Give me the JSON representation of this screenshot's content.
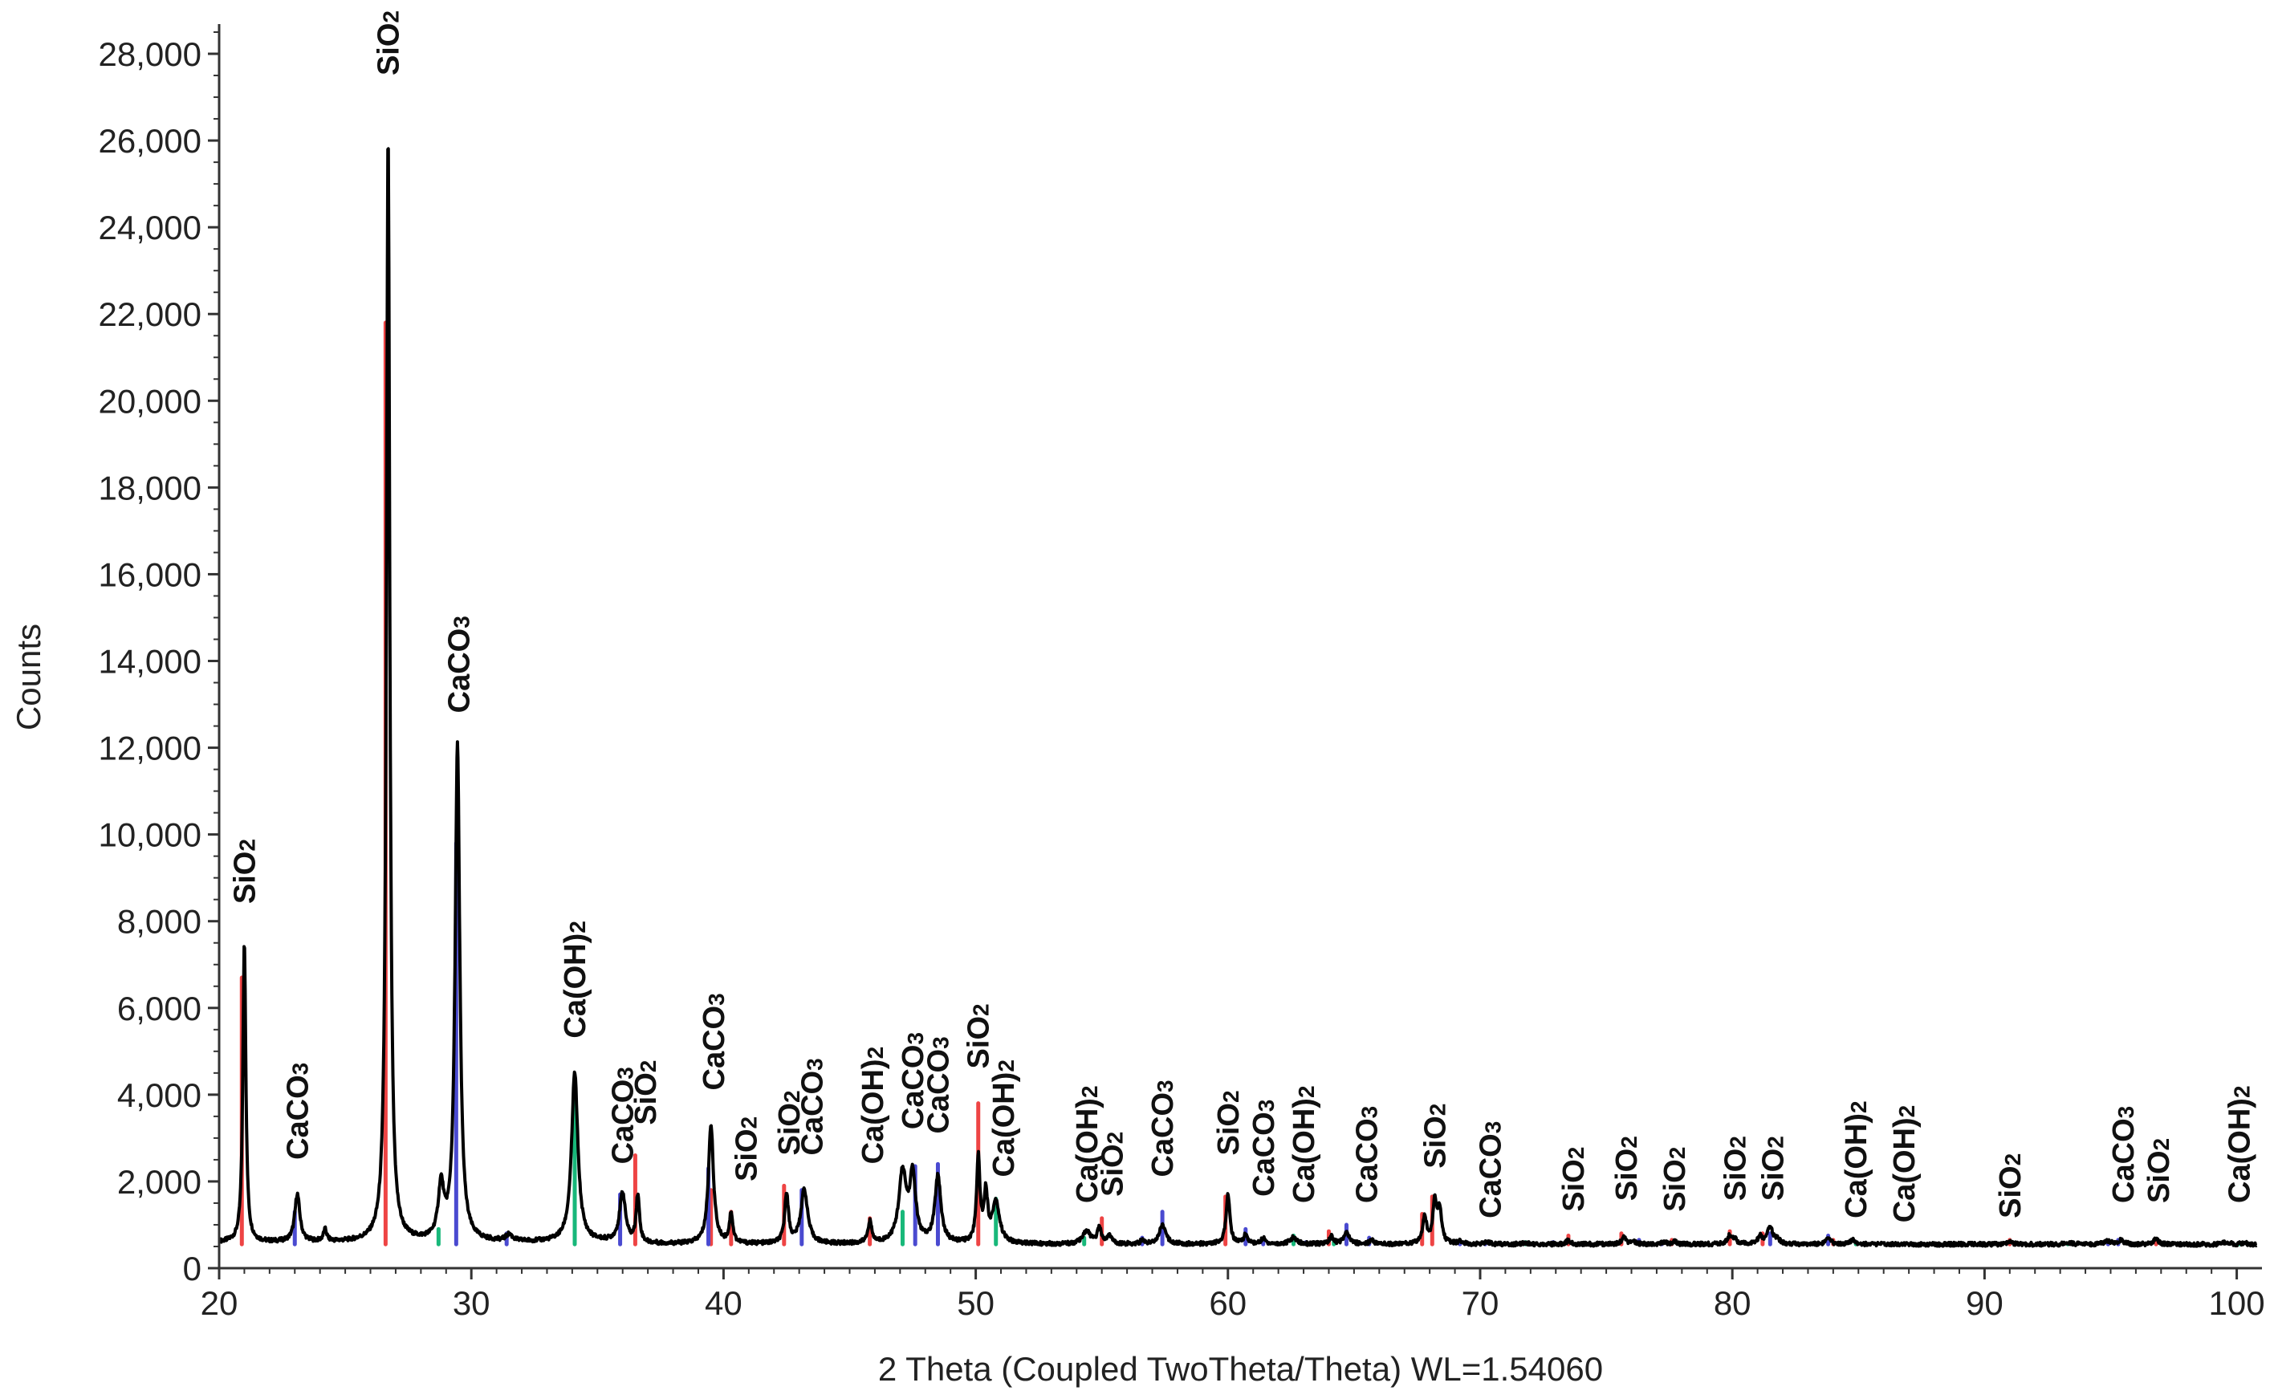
{
  "chart_data": {
    "type": "line",
    "title": "",
    "xlabel": "2 Theta (Coupled TwoTheta/Theta) WL=1.54060",
    "ylabel": "Counts",
    "xlim": [
      20,
      101
    ],
    "ylim": [
      0,
      28500
    ],
    "x_ticks": [
      20,
      30,
      40,
      50,
      60,
      70,
      80,
      90,
      100
    ],
    "y_ticks": [
      0,
      2000,
      4000,
      6000,
      8000,
      10000,
      12000,
      14000,
      16000,
      18000,
      20000,
      22000,
      24000,
      26000,
      28000
    ],
    "y_tick_labels": [
      "0",
      "2,000",
      "4,000",
      "6,000",
      "8,000",
      "10,000",
      "12,000",
      "14,000",
      "16,000",
      "18,000",
      "20,000",
      "22,000",
      "24,000",
      "26,000",
      "28,000"
    ],
    "colors": {
      "pattern": "#000000",
      "SiO2": "#ee4444",
      "CaCO3": "#4a4ad0",
      "Ca(OH)2": "#18b87a"
    },
    "baseline": 550,
    "pattern_peaks": [
      {
        "x": 21.0,
        "y": 7500,
        "w": 0.07
      },
      {
        "x": 23.1,
        "y": 1650,
        "w": 0.12
      },
      {
        "x": 24.2,
        "y": 820,
        "w": 0.08
      },
      {
        "x": 26.7,
        "y": 26100,
        "w": 0.08
      },
      {
        "x": 28.8,
        "y": 1750,
        "w": 0.13
      },
      {
        "x": 29.45,
        "y": 12000,
        "w": 0.11
      },
      {
        "x": 31.5,
        "y": 700,
        "w": 0.15
      },
      {
        "x": 34.1,
        "y": 4450,
        "w": 0.15
      },
      {
        "x": 36.0,
        "y": 1700,
        "w": 0.14
      },
      {
        "x": 36.6,
        "y": 1650,
        "w": 0.08
      },
      {
        "x": 39.5,
        "y": 3300,
        "w": 0.12
      },
      {
        "x": 40.3,
        "y": 1250,
        "w": 0.08
      },
      {
        "x": 42.5,
        "y": 1700,
        "w": 0.09
      },
      {
        "x": 43.2,
        "y": 1800,
        "w": 0.16
      },
      {
        "x": 45.8,
        "y": 1050,
        "w": 0.09
      },
      {
        "x": 47.1,
        "y": 2150,
        "w": 0.18
      },
      {
        "x": 47.5,
        "y": 2050,
        "w": 0.14
      },
      {
        "x": 48.5,
        "y": 2100,
        "w": 0.14
      },
      {
        "x": 50.1,
        "y": 2500,
        "w": 0.08
      },
      {
        "x": 50.4,
        "y": 1650,
        "w": 0.09
      },
      {
        "x": 50.8,
        "y": 1500,
        "w": 0.17
      },
      {
        "x": 54.4,
        "y": 850,
        "w": 0.17
      },
      {
        "x": 54.9,
        "y": 900,
        "w": 0.1
      },
      {
        "x": 55.3,
        "y": 750,
        "w": 0.1
      },
      {
        "x": 56.6,
        "y": 620,
        "w": 0.1
      },
      {
        "x": 57.4,
        "y": 1000,
        "w": 0.15
      },
      {
        "x": 60.0,
        "y": 1700,
        "w": 0.09
      },
      {
        "x": 60.7,
        "y": 760,
        "w": 0.1
      },
      {
        "x": 61.4,
        "y": 680,
        "w": 0.1
      },
      {
        "x": 62.6,
        "y": 700,
        "w": 0.16
      },
      {
        "x": 64.1,
        "y": 720,
        "w": 0.1
      },
      {
        "x": 64.7,
        "y": 800,
        "w": 0.14
      },
      {
        "x": 65.7,
        "y": 650,
        "w": 0.1
      },
      {
        "x": 67.8,
        "y": 1150,
        "w": 0.1
      },
      {
        "x": 68.2,
        "y": 1550,
        "w": 0.09
      },
      {
        "x": 68.4,
        "y": 1300,
        "w": 0.09
      },
      {
        "x": 69.2,
        "y": 610,
        "w": 0.1
      },
      {
        "x": 70.3,
        "y": 600,
        "w": 0.1
      },
      {
        "x": 71.8,
        "y": 580,
        "w": 0.14
      },
      {
        "x": 73.5,
        "y": 640,
        "w": 0.1
      },
      {
        "x": 75.7,
        "y": 720,
        "w": 0.1
      },
      {
        "x": 76.1,
        "y": 600,
        "w": 0.1
      },
      {
        "x": 77.3,
        "y": 600,
        "w": 0.1
      },
      {
        "x": 77.7,
        "y": 620,
        "w": 0.1
      },
      {
        "x": 79.9,
        "y": 760,
        "w": 0.1
      },
      {
        "x": 80.1,
        "y": 650,
        "w": 0.1
      },
      {
        "x": 81.1,
        "y": 720,
        "w": 0.1
      },
      {
        "x": 81.5,
        "y": 950,
        "w": 0.13
      },
      {
        "x": 81.8,
        "y": 640,
        "w": 0.1
      },
      {
        "x": 83.8,
        "y": 670,
        "w": 0.13
      },
      {
        "x": 84.8,
        "y": 640,
        "w": 0.14
      },
      {
        "x": 86.4,
        "y": 560,
        "w": 0.14
      },
      {
        "x": 91.0,
        "y": 630,
        "w": 0.1
      },
      {
        "x": 93.4,
        "y": 590,
        "w": 0.14
      },
      {
        "x": 94.9,
        "y": 620,
        "w": 0.15
      },
      {
        "x": 95.4,
        "y": 640,
        "w": 0.14
      },
      {
        "x": 96.8,
        "y": 680,
        "w": 0.1
      },
      {
        "x": 99.6,
        "y": 610,
        "w": 0.12
      },
      {
        "x": 100.3,
        "y": 580,
        "w": 0.12
      }
    ],
    "reference_peaks": {
      "SiO2": [
        {
          "x": 20.9,
          "y": 6700
        },
        {
          "x": 26.6,
          "y": 21800
        },
        {
          "x": 36.5,
          "y": 2600
        },
        {
          "x": 39.5,
          "y": 1800
        },
        {
          "x": 40.3,
          "y": 1300
        },
        {
          "x": 42.4,
          "y": 1900
        },
        {
          "x": 45.8,
          "y": 1150
        },
        {
          "x": 50.1,
          "y": 3800
        },
        {
          "x": 55.0,
          "y": 1150
        },
        {
          "x": 59.9,
          "y": 1650
        },
        {
          "x": 64.0,
          "y": 850
        },
        {
          "x": 67.7,
          "y": 1250
        },
        {
          "x": 68.1,
          "y": 1650
        },
        {
          "x": 73.5,
          "y": 750
        },
        {
          "x": 75.6,
          "y": 800
        },
        {
          "x": 77.6,
          "y": 650
        },
        {
          "x": 79.9,
          "y": 850
        },
        {
          "x": 81.2,
          "y": 800
        },
        {
          "x": 84.0,
          "y": 650
        },
        {
          "x": 91.0,
          "y": 650
        },
        {
          "x": 96.8,
          "y": 650
        }
      ],
      "CaCO3": [
        {
          "x": 23.0,
          "y": 1300
        },
        {
          "x": 29.4,
          "y": 9800
        },
        {
          "x": 31.4,
          "y": 800
        },
        {
          "x": 35.9,
          "y": 1700
        },
        {
          "x": 39.4,
          "y": 2300
        },
        {
          "x": 43.1,
          "y": 1800
        },
        {
          "x": 47.6,
          "y": 2350
        },
        {
          "x": 48.5,
          "y": 2400
        },
        {
          "x": 56.6,
          "y": 700
        },
        {
          "x": 57.4,
          "y": 1300
        },
        {
          "x": 60.7,
          "y": 900
        },
        {
          "x": 61.4,
          "y": 650
        },
        {
          "x": 63.1,
          "y": 600
        },
        {
          "x": 64.7,
          "y": 1000
        },
        {
          "x": 65.6,
          "y": 700
        },
        {
          "x": 69.2,
          "y": 600
        },
        {
          "x": 70.2,
          "y": 550
        },
        {
          "x": 72.9,
          "y": 600
        },
        {
          "x": 76.3,
          "y": 650
        },
        {
          "x": 77.2,
          "y": 550
        },
        {
          "x": 81.5,
          "y": 800
        },
        {
          "x": 83.8,
          "y": 750
        },
        {
          "x": 94.9,
          "y": 600
        },
        {
          "x": 95.3,
          "y": 650
        }
      ],
      "Ca(OH)2": [
        {
          "x": 28.7,
          "y": 900
        },
        {
          "x": 34.1,
          "y": 4400
        },
        {
          "x": 47.1,
          "y": 1300
        },
        {
          "x": 50.8,
          "y": 1600
        },
        {
          "x": 54.3,
          "y": 700
        },
        {
          "x": 62.6,
          "y": 750
        },
        {
          "x": 64.2,
          "y": 600
        },
        {
          "x": 71.8,
          "y": 600
        },
        {
          "x": 84.9,
          "y": 600
        },
        {
          "x": 86.3,
          "y": 550
        },
        {
          "x": 93.3,
          "y": 550
        },
        {
          "x": 100.1,
          "y": 550
        }
      ]
    },
    "annotations": [
      {
        "text": "SiO2",
        "x": 21.0,
        "y": 8400
      },
      {
        "text": "CaCO3",
        "x": 23.1,
        "y": 2500
      },
      {
        "text": "SiO2",
        "x": 26.7,
        "y": 27500
      },
      {
        "text": "CaCO3",
        "x": 29.5,
        "y": 12800
      },
      {
        "text": "Ca(OH)2",
        "x": 34.1,
        "y": 5300
      },
      {
        "text": "CaCO3",
        "x": 36.0,
        "y": 2400
      },
      {
        "text": "SiO2",
        "x": 36.9,
        "y": 3300
      },
      {
        "text": "CaCO3",
        "x": 39.6,
        "y": 4100
      },
      {
        "text": "SiO2",
        "x": 40.9,
        "y": 2000
      },
      {
        "text": "SiO2",
        "x": 42.6,
        "y": 2600
      },
      {
        "text": "CaCO3",
        "x": 43.5,
        "y": 2600
      },
      {
        "text": "Ca(OH)2",
        "x": 45.9,
        "y": 2400
      },
      {
        "text": "CaCO3",
        "x": 47.5,
        "y": 3200
      },
      {
        "text": "CaCO3",
        "x": 48.5,
        "y": 3100
      },
      {
        "text": "SiO2",
        "x": 50.1,
        "y": 4600
      },
      {
        "text": "Ca(OH)2",
        "x": 51.1,
        "y": 2100
      },
      {
        "text": "Ca(OH)2",
        "x": 54.4,
        "y": 1500
      },
      {
        "text": "SiO2",
        "x": 55.4,
        "y": 1650
      },
      {
        "text": "CaCO3",
        "x": 57.4,
        "y": 2100
      },
      {
        "text": "SiO2",
        "x": 60.0,
        "y": 2600
      },
      {
        "text": "CaCO3",
        "x": 61.4,
        "y": 1650
      },
      {
        "text": "Ca(OH)2",
        "x": 63.0,
        "y": 1500
      },
      {
        "text": "CaCO3",
        "x": 65.5,
        "y": 1500
      },
      {
        "text": "SiO2",
        "x": 68.2,
        "y": 2300
      },
      {
        "text": "CaCO3",
        "x": 70.4,
        "y": 1150
      },
      {
        "text": "SiO2",
        "x": 73.7,
        "y": 1300
      },
      {
        "text": "SiO2",
        "x": 75.8,
        "y": 1550
      },
      {
        "text": "SiO2",
        "x": 77.7,
        "y": 1300
      },
      {
        "text": "SiO2",
        "x": 80.1,
        "y": 1550
      },
      {
        "text": "SiO2",
        "x": 81.6,
        "y": 1550
      },
      {
        "text": "Ca(OH)2",
        "x": 84.9,
        "y": 1150
      },
      {
        "text": "Ca(OH)2",
        "x": 86.8,
        "y": 1050
      },
      {
        "text": "SiO2",
        "x": 91.0,
        "y": 1150
      },
      {
        "text": "CaCO3",
        "x": 95.5,
        "y": 1500
      },
      {
        "text": "SiO2",
        "x": 96.9,
        "y": 1500
      },
      {
        "text": "Ca(OH)2",
        "x": 100.1,
        "y": 1500
      }
    ]
  }
}
